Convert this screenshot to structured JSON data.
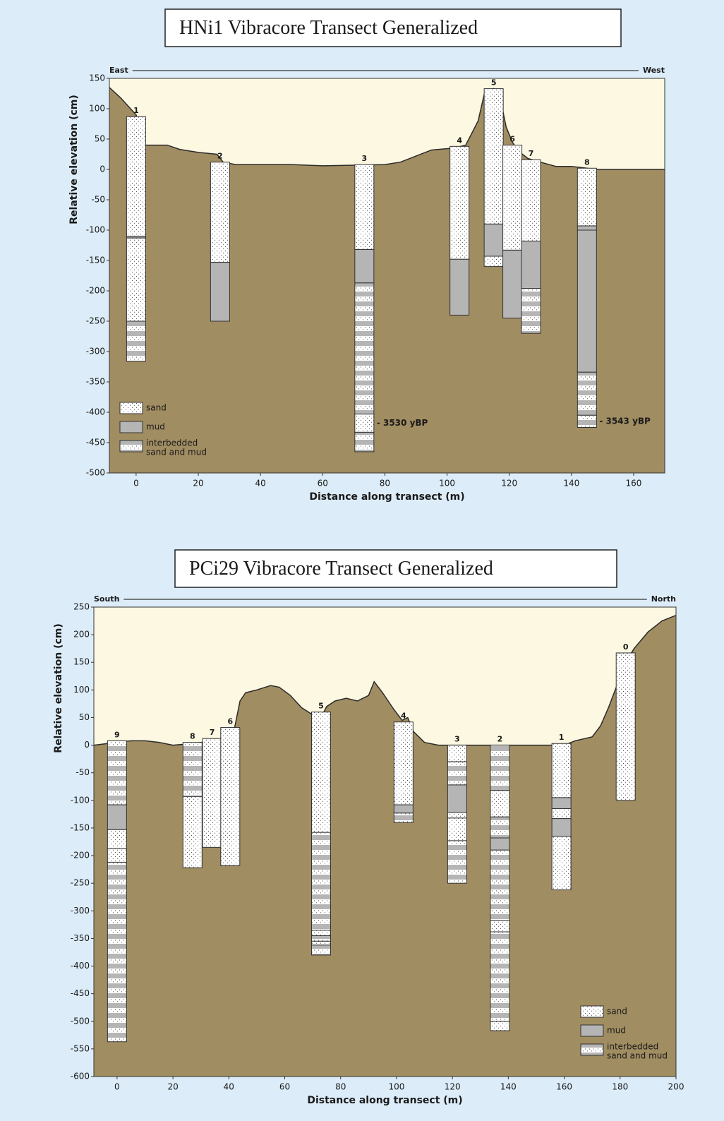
{
  "chart_data": [
    {
      "type": "core-section",
      "title": "HNi1 Vibracore Transect Generalized",
      "x_label": "Distance along transect (m)",
      "y_label": "Relative elevation (cm)",
      "left_label": "East",
      "right_label": "West",
      "xlim": [
        -8.6,
        170
      ],
      "xticks": [
        0,
        20,
        40,
        60,
        80,
        100,
        120,
        140,
        160
      ],
      "ylim": [
        -500,
        150
      ],
      "yticks": [
        -500,
        -450,
        -400,
        -350,
        -300,
        -250,
        -200,
        -150,
        -100,
        -50,
        0,
        50,
        100,
        150
      ],
      "grid": false,
      "legend_position": "lower left",
      "legend": [
        {
          "label": "sand"
        },
        {
          "label": "mud"
        },
        {
          "label": [
            "interbedded",
            "sand and mud"
          ]
        }
      ],
      "surface": {
        "x": [
          -8.6,
          -5,
          0,
          2,
          3,
          10,
          14,
          20,
          26,
          28,
          32,
          50,
          60,
          70,
          80,
          85,
          90,
          95,
          102,
          106,
          110,
          112,
          115,
          117,
          119,
          121,
          123,
          126,
          130,
          135,
          140,
          145,
          148,
          170
        ],
        "y": [
          135,
          118,
          90,
          50,
          40,
          40,
          33,
          28,
          25,
          12,
          8,
          8,
          6,
          7,
          8,
          12,
          22,
          32,
          35,
          40,
          80,
          125,
          133,
          120,
          70,
          45,
          30,
          18,
          12,
          5,
          5,
          2,
          0,
          0
        ]
      },
      "cores": [
        {
          "name": "1",
          "x": 0,
          "layers": [
            {
              "lith": "sand",
              "top": 87,
              "bottom": -110
            },
            {
              "lith": "mud",
              "top": -110,
              "bottom": -113
            },
            {
              "lith": "sand",
              "top": -113,
              "bottom": -250
            },
            {
              "lith": "interbedded",
              "top": -250,
              "bottom": -316
            }
          ]
        },
        {
          "name": "2",
          "x": 27,
          "layers": [
            {
              "lith": "sand",
              "top": 12,
              "bottom": -153
            },
            {
              "lith": "mud",
              "top": -153,
              "bottom": -250
            }
          ]
        },
        {
          "name": "3",
          "x": 73.4,
          "layers": [
            {
              "lith": "sand",
              "top": 8,
              "bottom": -132
            },
            {
              "lith": "mud",
              "top": -132,
              "bottom": -187
            },
            {
              "lith": "interbedded",
              "top": -187,
              "bottom": -403
            },
            {
              "lith": "sand",
              "top": -403,
              "bottom": -433,
              "date": "- 3530 yBP"
            },
            {
              "lith": "interbedded",
              "top": -433,
              "bottom": -465
            }
          ]
        },
        {
          "name": "4",
          "x": 104,
          "layers": [
            {
              "lith": "sand",
              "top": 38,
              "bottom": -148
            },
            {
              "lith": "mud",
              "top": -148,
              "bottom": -240
            }
          ]
        },
        {
          "name": "5",
          "x": 115,
          "layers": [
            {
              "lith": "sand",
              "top": 133,
              "bottom": -90
            },
            {
              "lith": "mud",
              "top": -90,
              "bottom": -143
            },
            {
              "lith": "sand",
              "top": -143,
              "bottom": -160
            }
          ]
        },
        {
          "name": "6",
          "x": 121,
          "layers": [
            {
              "lith": "sand",
              "top": 40,
              "bottom": -133
            },
            {
              "lith": "mud",
              "top": -133,
              "bottom": -245
            }
          ]
        },
        {
          "name": "7",
          "x": 127,
          "layers": [
            {
              "lith": "sand",
              "top": 16,
              "bottom": -118
            },
            {
              "lith": "mud",
              "top": -118,
              "bottom": -196
            },
            {
              "lith": "interbedded",
              "top": -196,
              "bottom": -270
            }
          ]
        },
        {
          "name": "8",
          "x": 145,
          "layers": [
            {
              "lith": "sand",
              "top": 2,
              "bottom": -93
            },
            {
              "lith": "mud",
              "top": -93,
              "bottom": -100
            },
            {
              "lith": "mud",
              "top": -100,
              "bottom": -334
            },
            {
              "lith": "interbedded",
              "top": -334,
              "bottom": -405
            },
            {
              "lith": "interbedded",
              "top": -405,
              "bottom": -425,
              "date": "- 3543 yBP"
            }
          ]
        }
      ]
    },
    {
      "type": "core-section",
      "title": "PCi29 Vibracore Transect Generalized",
      "x_label": "Distance along transect (m)",
      "y_label": "Relative elevation (cm)",
      "left_label": "South",
      "right_label": "North",
      "xlim": [
        -8.3,
        200
      ],
      "xticks": [
        0,
        20,
        40,
        60,
        80,
        100,
        120,
        140,
        160,
        180,
        200
      ],
      "ylim": [
        -600,
        250
      ],
      "yticks": [
        -600,
        -550,
        -500,
        -450,
        -400,
        -350,
        -300,
        -250,
        -200,
        -150,
        -100,
        -50,
        0,
        50,
        100,
        150,
        200,
        250
      ],
      "grid": false,
      "legend_position": "lower right",
      "legend": [
        {
          "label": "sand"
        },
        {
          "label": "mud"
        },
        {
          "label": [
            "interbedded",
            "sand and mud"
          ]
        }
      ],
      "surface": {
        "x": [
          -8.3,
          0,
          5,
          10,
          15,
          20,
          25,
          30,
          35,
          40,
          42,
          44,
          46,
          50,
          55,
          58,
          62,
          66,
          70,
          73,
          75,
          78,
          82,
          86,
          90,
          92,
          95,
          99,
          102,
          104,
          106,
          110,
          115,
          120,
          160,
          164,
          170,
          173,
          176,
          179,
          182,
          185,
          190,
          195,
          200
        ],
        "y": [
          0,
          5,
          8,
          8,
          5,
          0,
          2,
          5,
          8,
          15,
          30,
          80,
          95,
          100,
          108,
          105,
          90,
          68,
          55,
          50,
          70,
          80,
          85,
          80,
          90,
          115,
          95,
          65,
          45,
          50,
          25,
          5,
          0,
          0,
          0,
          8,
          15,
          35,
          70,
          110,
          150,
          175,
          205,
          225,
          235
        ]
      },
      "cores": [
        {
          "name": "9",
          "x": 0,
          "layers": [
            {
              "lith": "interbedded",
              "top": 8,
              "bottom": -108
            },
            {
              "lith": "mud",
              "top": -108,
              "bottom": -153
            },
            {
              "lith": "sand",
              "top": -153,
              "bottom": -187
            },
            {
              "lith": "sand",
              "top": -187,
              "bottom": -212
            },
            {
              "lith": "interbedded",
              "top": -212,
              "bottom": -537
            }
          ]
        },
        {
          "name": "8",
          "x": 27,
          "layers": [
            {
              "lith": "interbedded",
              "top": 5,
              "bottom": -93
            },
            {
              "lith": "sand",
              "top": -93,
              "bottom": -222
            }
          ]
        },
        {
          "name": "7",
          "x": 34,
          "layers": [
            {
              "lith": "sand",
              "top": 12,
              "bottom": -185
            }
          ]
        },
        {
          "name": "6",
          "x": 40.5,
          "layers": [
            {
              "lith": "sand",
              "top": 32,
              "bottom": -218
            }
          ]
        },
        {
          "name": "5",
          "x": 73,
          "layers": [
            {
              "lith": "sand",
              "top": 60,
              "bottom": -158
            },
            {
              "lith": "interbedded",
              "top": -158,
              "bottom": -335
            },
            {
              "lith": "sand",
              "top": -335,
              "bottom": -345
            },
            {
              "lith": "interbedded",
              "top": -345,
              "bottom": -355
            },
            {
              "lith": "sand",
              "top": -355,
              "bottom": -362
            },
            {
              "lith": "interbedded",
              "top": -362,
              "bottom": -380
            }
          ]
        },
        {
          "name": "4",
          "x": 102.5,
          "layers": [
            {
              "lith": "sand",
              "top": 42,
              "bottom": -108
            },
            {
              "lith": "mud",
              "top": -108,
              "bottom": -123
            },
            {
              "lith": "interbedded",
              "top": -123,
              "bottom": -140
            }
          ]
        },
        {
          "name": "3",
          "x": 121.7,
          "layers": [
            {
              "lith": "sand",
              "top": 0,
              "bottom": -30
            },
            {
              "lith": "interbedded",
              "top": -30,
              "bottom": -72
            },
            {
              "lith": "mud",
              "top": -72,
              "bottom": -122
            },
            {
              "lith": "sand",
              "top": -122,
              "bottom": -132
            },
            {
              "lith": "sand",
              "top": -132,
              "bottom": -173
            },
            {
              "lith": "interbedded",
              "top": -173,
              "bottom": -250
            }
          ]
        },
        {
          "name": "2",
          "x": 137,
          "layers": [
            {
              "lith": "interbedded",
              "top": 0,
              "bottom": -82
            },
            {
              "lith": "sand",
              "top": -82,
              "bottom": -130
            },
            {
              "lith": "interbedded",
              "top": -130,
              "bottom": -168
            },
            {
              "lith": "mud",
              "top": -168,
              "bottom": -190
            },
            {
              "lith": "interbedded",
              "top": -190,
              "bottom": -317
            },
            {
              "lith": "sand",
              "top": -317,
              "bottom": -338
            },
            {
              "lith": "interbedded",
              "top": -338,
              "bottom": -500
            },
            {
              "lith": "sand",
              "top": -500,
              "bottom": -517
            }
          ]
        },
        {
          "name": "1",
          "x": 159,
          "layers": [
            {
              "lith": "sand",
              "top": 3,
              "bottom": -95
            },
            {
              "lith": "mud",
              "top": -95,
              "bottom": -115
            },
            {
              "lith": "sand",
              "top": -115,
              "bottom": -133
            },
            {
              "lith": "mud",
              "top": -133,
              "bottom": -165
            },
            {
              "lith": "sand",
              "top": -165,
              "bottom": -262
            }
          ]
        },
        {
          "name": "0",
          "x": 182,
          "layers": [
            {
              "lith": "sand",
              "top": 167,
              "bottom": -100
            }
          ]
        }
      ]
    }
  ]
}
